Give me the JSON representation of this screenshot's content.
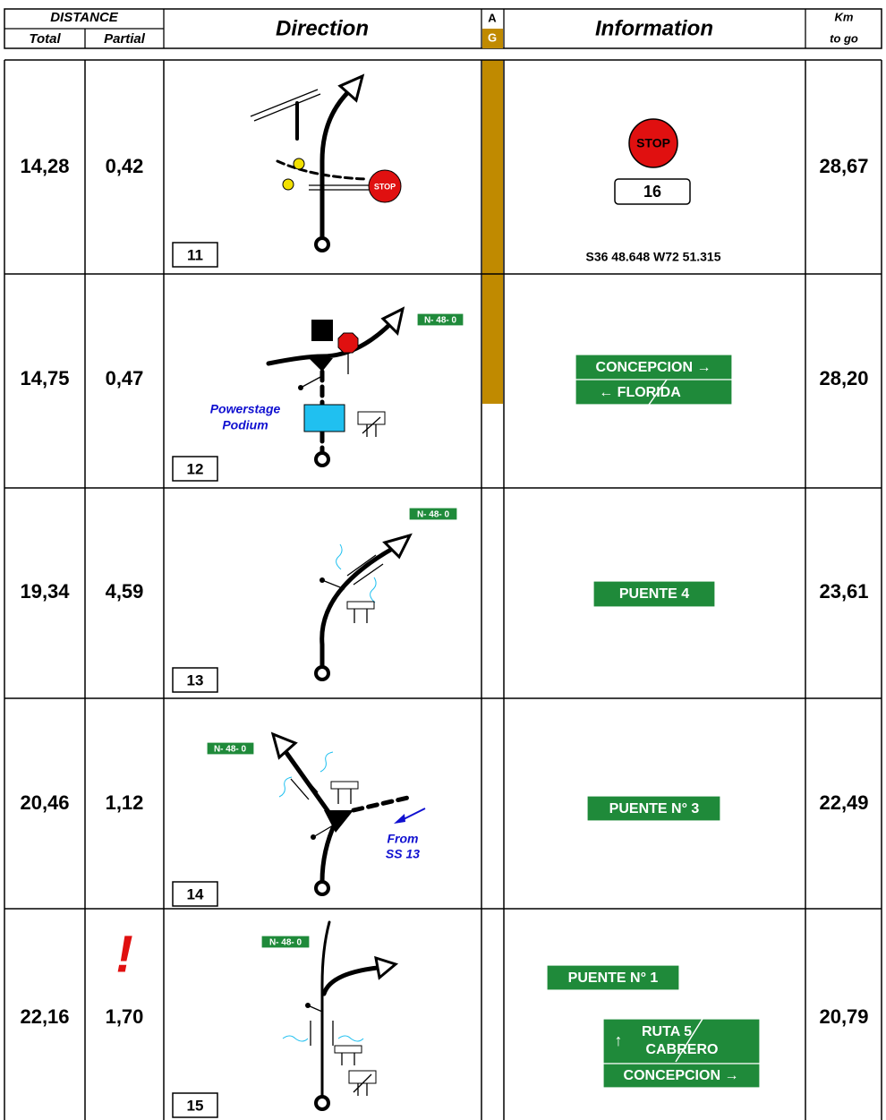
{
  "header": {
    "distance": "DISTANCE",
    "total": "Total",
    "partial": "Partial",
    "direction": "Direction",
    "a": "A",
    "g": "G",
    "information": "Information",
    "km": "Km",
    "to_go": "to go"
  },
  "rows": [
    {
      "total": "14,28",
      "partial": "0,42",
      "box": "11",
      "km_to_go": "28,67",
      "direction_labels": [
        "STOP"
      ],
      "info": [
        "STOP",
        "16",
        "S36 48.648 W72 51.315"
      ]
    },
    {
      "total": "14,75",
      "partial": "0,47",
      "box": "12",
      "km_to_go": "28,20",
      "direction_labels": [
        "N- 48- 0",
        "Powerstage",
        "Podium"
      ],
      "info": [
        "CONCEPCION →",
        "←   FLORIDA"
      ]
    },
    {
      "total": "19,34",
      "partial": "4,59",
      "box": "13",
      "km_to_go": "23,61",
      "direction_labels": [
        "N- 48- 0"
      ],
      "info": [
        "PUENTE 4"
      ]
    },
    {
      "total": "20,46",
      "partial": "1,12",
      "box": "14",
      "km_to_go": "22,49",
      "direction_labels": [
        "N- 48- 0",
        "From",
        "SS 13"
      ],
      "info": [
        "PUENTE N° 3"
      ]
    },
    {
      "total": "22,16",
      "partial": "1,70",
      "warning": "!",
      "box": "15",
      "km_to_go": "20,79",
      "direction_labels": [
        "N- 48- 0"
      ],
      "info": [
        "PUENTE N° 1",
        "↑",
        "RUTA 5",
        "CABRERO",
        "CONCEPCION →"
      ]
    }
  ]
}
